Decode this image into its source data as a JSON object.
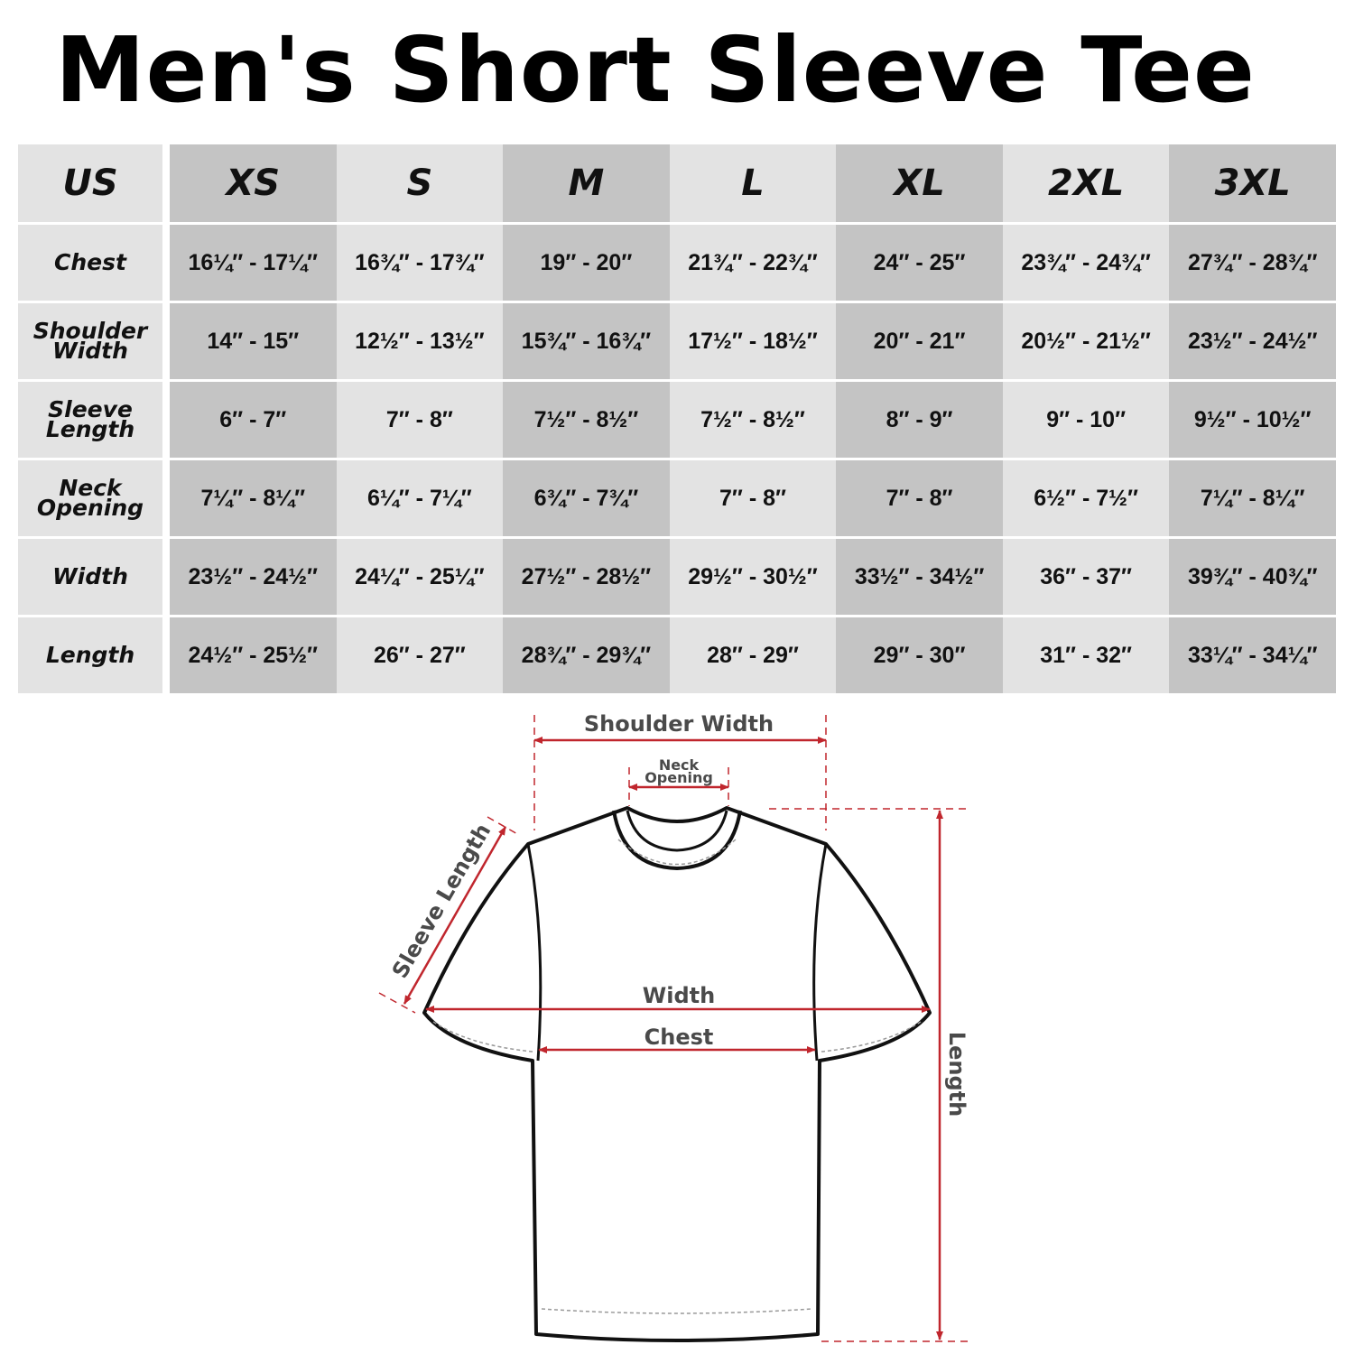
{
  "title": "Men's Short Sleeve Tee",
  "table": {
    "corner": "US",
    "sizes": [
      "XS",
      "S",
      "M",
      "L",
      "XL",
      "2XL",
      "3XL"
    ],
    "rows": [
      {
        "label": [
          "Chest"
        ],
        "values": [
          "16¼″ - 17¼″",
          "16¾″ - 17¾″",
          "19″ - 20″",
          "21¾″ - 22¾″",
          "24″ - 25″",
          "23¾″ - 24¾″",
          "27¾″ - 28¾″"
        ]
      },
      {
        "label": [
          "Shoulder",
          "Width"
        ],
        "values": [
          "14″ - 15″",
          "12½″ - 13½″",
          "15¾″ - 16¾″",
          "17½″ - 18½″",
          "20″ - 21″",
          "20½″ - 21½″",
          "23½″ - 24½″"
        ]
      },
      {
        "label": [
          "Sleeve",
          "Length"
        ],
        "values": [
          "6″ - 7″",
          "7″ - 8″",
          "7½″ - 8½″",
          "7½″ - 8½″",
          "8″ - 9″",
          "9″ - 10″",
          "9½″ - 10½″"
        ]
      },
      {
        "label": [
          "Neck",
          "Opening"
        ],
        "values": [
          "7¼″ - 8¼″",
          "6¼″ - 7¼″",
          "6¾″ - 7¾″",
          "7″ - 8″",
          "7″ - 8″",
          "6½″ - 7½″",
          "7¼″ - 8¼″"
        ]
      },
      {
        "label": [
          "Width"
        ],
        "values": [
          "23½″ - 24½″",
          "24¼″ - 25¼″",
          "27½″ - 28½″",
          "29½″ - 30½″",
          "33½″ - 34½″",
          "36″ - 37″",
          "39¾″ - 40¾″"
        ]
      },
      {
        "label": [
          "Length"
        ],
        "values": [
          "24½″ - 25½″",
          "26″ - 27″",
          "28¾″ - 29¾″",
          "28″ - 29″",
          "29″ - 30″",
          "31″ - 32″",
          "33¼″ - 34¼″"
        ]
      }
    ]
  },
  "diagram": {
    "shoulder_width": "Shoulder Width",
    "neck_opening": [
      "Neck",
      "Opening"
    ],
    "sleeve_length": "Sleeve Length",
    "width": "Width",
    "chest": "Chest",
    "length": "Length"
  },
  "colors": {
    "dark_cell": "#c4c4c4",
    "light_cell": "#e3e3e3",
    "measure_line": "#c0262d",
    "label_text": "#4a4a4a"
  }
}
